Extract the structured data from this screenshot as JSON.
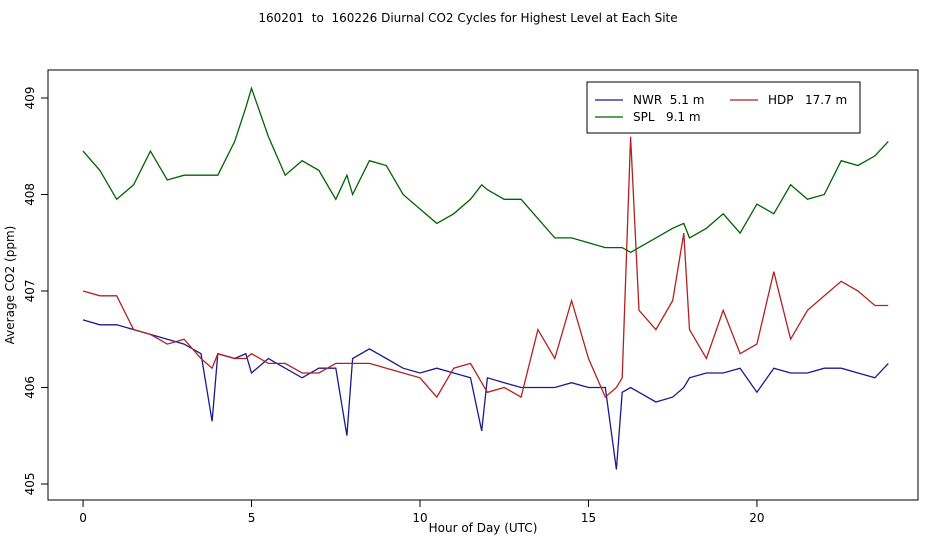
{
  "chart_data": {
    "type": "line",
    "title": "160201  to  160226 Diurnal CO2 Cycles for Highest Level at Each Site",
    "xlabel": "Hour of Day (UTC)",
    "ylabel": "Average CO2 (ppm)",
    "x": [
      0,
      0.5,
      1,
      1.5,
      2,
      2.5,
      3,
      3.5,
      3.83,
      4,
      4.5,
      4.83,
      5,
      5.5,
      6,
      6.5,
      7,
      7.5,
      7.83,
      8,
      8.5,
      9,
      9.5,
      10,
      10.5,
      11,
      11.5,
      11.83,
      12,
      12.5,
      13,
      13.5,
      14,
      14.5,
      15,
      15.5,
      15.83,
      16,
      16.25,
      16.5,
      17,
      17.5,
      17.83,
      18,
      18.5,
      19,
      19.5,
      20,
      20.5,
      21,
      21.5,
      22,
      22.5,
      23,
      23.5,
      23.9
    ],
    "series": [
      {
        "name": "NWR  5.1 m",
        "color": "#1a1a8c",
        "values": [
          406.7,
          406.65,
          406.65,
          406.6,
          406.55,
          406.5,
          406.45,
          406.35,
          405.65,
          406.35,
          406.3,
          406.35,
          406.15,
          406.3,
          406.2,
          406.1,
          406.2,
          406.2,
          405.5,
          406.3,
          406.4,
          406.3,
          406.2,
          406.15,
          406.2,
          406.15,
          406.1,
          405.55,
          406.1,
          406.05,
          406.0,
          406.0,
          406.0,
          406.05,
          406.0,
          406.0,
          405.15,
          405.95,
          406.0,
          405.95,
          405.85,
          405.9,
          406.0,
          406.1,
          406.15,
          406.15,
          406.2,
          405.95,
          406.2,
          406.15,
          406.15,
          406.2,
          406.2,
          406.15,
          406.1,
          406.25
        ]
      },
      {
        "name": "HDP   17.7 m",
        "color": "#b22222",
        "values": [
          407.0,
          406.95,
          406.95,
          406.6,
          406.55,
          406.45,
          406.5,
          406.3,
          406.2,
          406.35,
          406.3,
          406.3,
          406.35,
          406.25,
          406.25,
          406.15,
          406.15,
          406.25,
          406.25,
          406.25,
          406.25,
          406.2,
          406.15,
          406.1,
          405.9,
          406.2,
          406.25,
          406.05,
          405.95,
          406.0,
          405.9,
          406.6,
          406.3,
          406.9,
          406.3,
          405.9,
          406.0,
          406.1,
          408.6,
          406.8,
          406.6,
          406.9,
          407.6,
          406.6,
          406.3,
          406.8,
          406.35,
          406.45,
          407.2,
          406.5,
          406.8,
          406.95,
          407.1,
          407.0,
          406.85,
          406.85
        ]
      },
      {
        "name": "SPL   9.1 m",
        "color": "#006400",
        "values": [
          408.45,
          408.25,
          407.95,
          408.1,
          408.45,
          408.15,
          408.2,
          408.2,
          408.2,
          408.2,
          408.55,
          408.9,
          409.1,
          408.6,
          408.2,
          408.35,
          408.25,
          407.95,
          408.2,
          408.0,
          408.35,
          408.3,
          408.0,
          407.85,
          407.7,
          407.8,
          407.95,
          408.1,
          408.05,
          407.95,
          407.95,
          407.75,
          407.55,
          407.55,
          407.5,
          407.45,
          407.45,
          407.45,
          407.4,
          407.45,
          407.55,
          407.65,
          407.7,
          407.55,
          407.65,
          407.8,
          407.6,
          407.9,
          407.8,
          408.1,
          407.95,
          408.0,
          408.35,
          408.3,
          408.4,
          408.55
        ]
      }
    ],
    "xlim": [
      -1.04,
      24.78
    ],
    "ylim": [
      404.834,
      409.29
    ],
    "xticks": [
      0,
      5,
      10,
      15,
      20
    ],
    "yticks": [
      405,
      406,
      407,
      408,
      409
    ],
    "legend": "top-right"
  }
}
